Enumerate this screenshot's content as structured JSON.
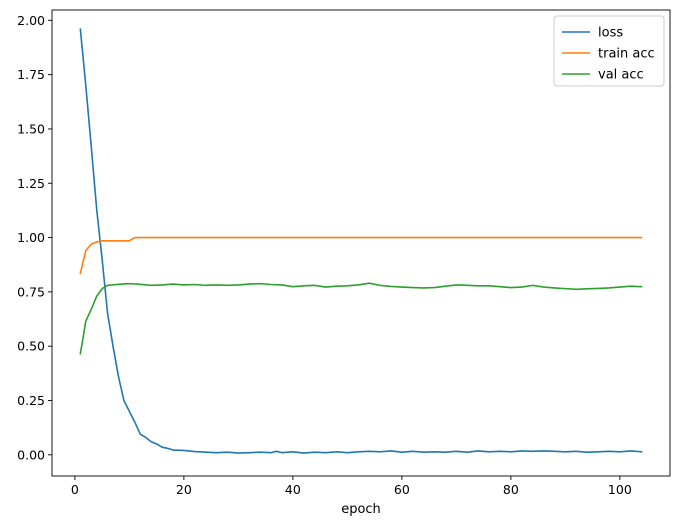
{
  "chart_data": {
    "type": "line",
    "xlabel": "epoch",
    "ylabel": "",
    "xlim": [
      -4.2,
      109.2
    ],
    "ylim": [
      -0.0975,
      2.0475
    ],
    "xticks": [
      0,
      20,
      40,
      60,
      80,
      100
    ],
    "yticks": [
      0.0,
      0.25,
      0.5,
      0.75,
      1.0,
      1.25,
      1.5,
      1.75,
      2.0
    ],
    "xtick_labels": [
      "0",
      "20",
      "40",
      "60",
      "80",
      "100"
    ],
    "ytick_labels": [
      "0.00",
      "0.25",
      "0.50",
      "0.75",
      "1.00",
      "1.25",
      "1.50",
      "1.75",
      "2.00"
    ],
    "grid": false,
    "legend_position": "top-right",
    "series": [
      {
        "name": "loss",
        "color": "#1f77b4",
        "points": [
          [
            1,
            1.96
          ],
          [
            2,
            1.7
          ],
          [
            3,
            1.42
          ],
          [
            4,
            1.13
          ],
          [
            5,
            0.9
          ],
          [
            6,
            0.65
          ],
          [
            7,
            0.5
          ],
          [
            8,
            0.36
          ],
          [
            9,
            0.25
          ],
          [
            10,
            0.2
          ],
          [
            11,
            0.15
          ],
          [
            12,
            0.095
          ],
          [
            13,
            0.08
          ],
          [
            14,
            0.06
          ],
          [
            15,
            0.05
          ],
          [
            16,
            0.035
          ],
          [
            17,
            0.03
          ],
          [
            18,
            0.022
          ],
          [
            20,
            0.02
          ],
          [
            22,
            0.015
          ],
          [
            24,
            0.012
          ],
          [
            26,
            0.01
          ],
          [
            28,
            0.012
          ],
          [
            30,
            0.008
          ],
          [
            32,
            0.01
          ],
          [
            34,
            0.012
          ],
          [
            36,
            0.01
          ],
          [
            37,
            0.016
          ],
          [
            38,
            0.01
          ],
          [
            40,
            0.014
          ],
          [
            42,
            0.008
          ],
          [
            44,
            0.012
          ],
          [
            46,
            0.01
          ],
          [
            48,
            0.014
          ],
          [
            50,
            0.01
          ],
          [
            52,
            0.014
          ],
          [
            54,
            0.016
          ],
          [
            56,
            0.014
          ],
          [
            58,
            0.018
          ],
          [
            60,
            0.012
          ],
          [
            62,
            0.016
          ],
          [
            64,
            0.012
          ],
          [
            66,
            0.014
          ],
          [
            68,
            0.012
          ],
          [
            70,
            0.016
          ],
          [
            72,
            0.012
          ],
          [
            74,
            0.018
          ],
          [
            76,
            0.014
          ],
          [
            78,
            0.016
          ],
          [
            80,
            0.014
          ],
          [
            82,
            0.018
          ],
          [
            84,
            0.016
          ],
          [
            86,
            0.018
          ],
          [
            88,
            0.016
          ],
          [
            90,
            0.014
          ],
          [
            92,
            0.016
          ],
          [
            94,
            0.012
          ],
          [
            96,
            0.014
          ],
          [
            98,
            0.016
          ],
          [
            100,
            0.014
          ],
          [
            102,
            0.018
          ],
          [
            104,
            0.014
          ]
        ]
      },
      {
        "name": "train acc",
        "color": "#ff7f0e",
        "points": [
          [
            1,
            0.835
          ],
          [
            2,
            0.94
          ],
          [
            3,
            0.97
          ],
          [
            4,
            0.98
          ],
          [
            5,
            0.985
          ],
          [
            6,
            0.985
          ],
          [
            8,
            0.985
          ],
          [
            10,
            0.985
          ],
          [
            11,
            1.0
          ],
          [
            12,
            1.0
          ],
          [
            20,
            1.0
          ],
          [
            40,
            1.0
          ],
          [
            60,
            1.0
          ],
          [
            80,
            1.0
          ],
          [
            100,
            1.0
          ],
          [
            104,
            1.0
          ]
        ]
      },
      {
        "name": "val acc",
        "color": "#2ca02c",
        "points": [
          [
            1,
            0.465
          ],
          [
            2,
            0.615
          ],
          [
            3,
            0.67
          ],
          [
            4,
            0.73
          ],
          [
            5,
            0.765
          ],
          [
            6,
            0.78
          ],
          [
            8,
            0.785
          ],
          [
            10,
            0.788
          ],
          [
            12,
            0.785
          ],
          [
            14,
            0.78
          ],
          [
            16,
            0.782
          ],
          [
            18,
            0.786
          ],
          [
            20,
            0.782
          ],
          [
            22,
            0.784
          ],
          [
            24,
            0.78
          ],
          [
            26,
            0.782
          ],
          [
            28,
            0.78
          ],
          [
            30,
            0.782
          ],
          [
            32,
            0.786
          ],
          [
            34,
            0.788
          ],
          [
            36,
            0.784
          ],
          [
            38,
            0.782
          ],
          [
            40,
            0.774
          ],
          [
            42,
            0.778
          ],
          [
            44,
            0.78
          ],
          [
            46,
            0.772
          ],
          [
            48,
            0.776
          ],
          [
            50,
            0.778
          ],
          [
            52,
            0.782
          ],
          [
            54,
            0.79
          ],
          [
            56,
            0.78
          ],
          [
            58,
            0.775
          ],
          [
            60,
            0.772
          ],
          [
            62,
            0.77
          ],
          [
            64,
            0.768
          ],
          [
            66,
            0.77
          ],
          [
            68,
            0.776
          ],
          [
            70,
            0.782
          ],
          [
            72,
            0.78
          ],
          [
            74,
            0.778
          ],
          [
            76,
            0.778
          ],
          [
            78,
            0.774
          ],
          [
            80,
            0.77
          ],
          [
            82,
            0.772
          ],
          [
            84,
            0.78
          ],
          [
            86,
            0.772
          ],
          [
            88,
            0.768
          ],
          [
            90,
            0.765
          ],
          [
            92,
            0.762
          ],
          [
            94,
            0.764
          ],
          [
            96,
            0.766
          ],
          [
            98,
            0.768
          ],
          [
            100,
            0.772
          ],
          [
            102,
            0.776
          ],
          [
            104,
            0.774
          ]
        ]
      }
    ]
  }
}
